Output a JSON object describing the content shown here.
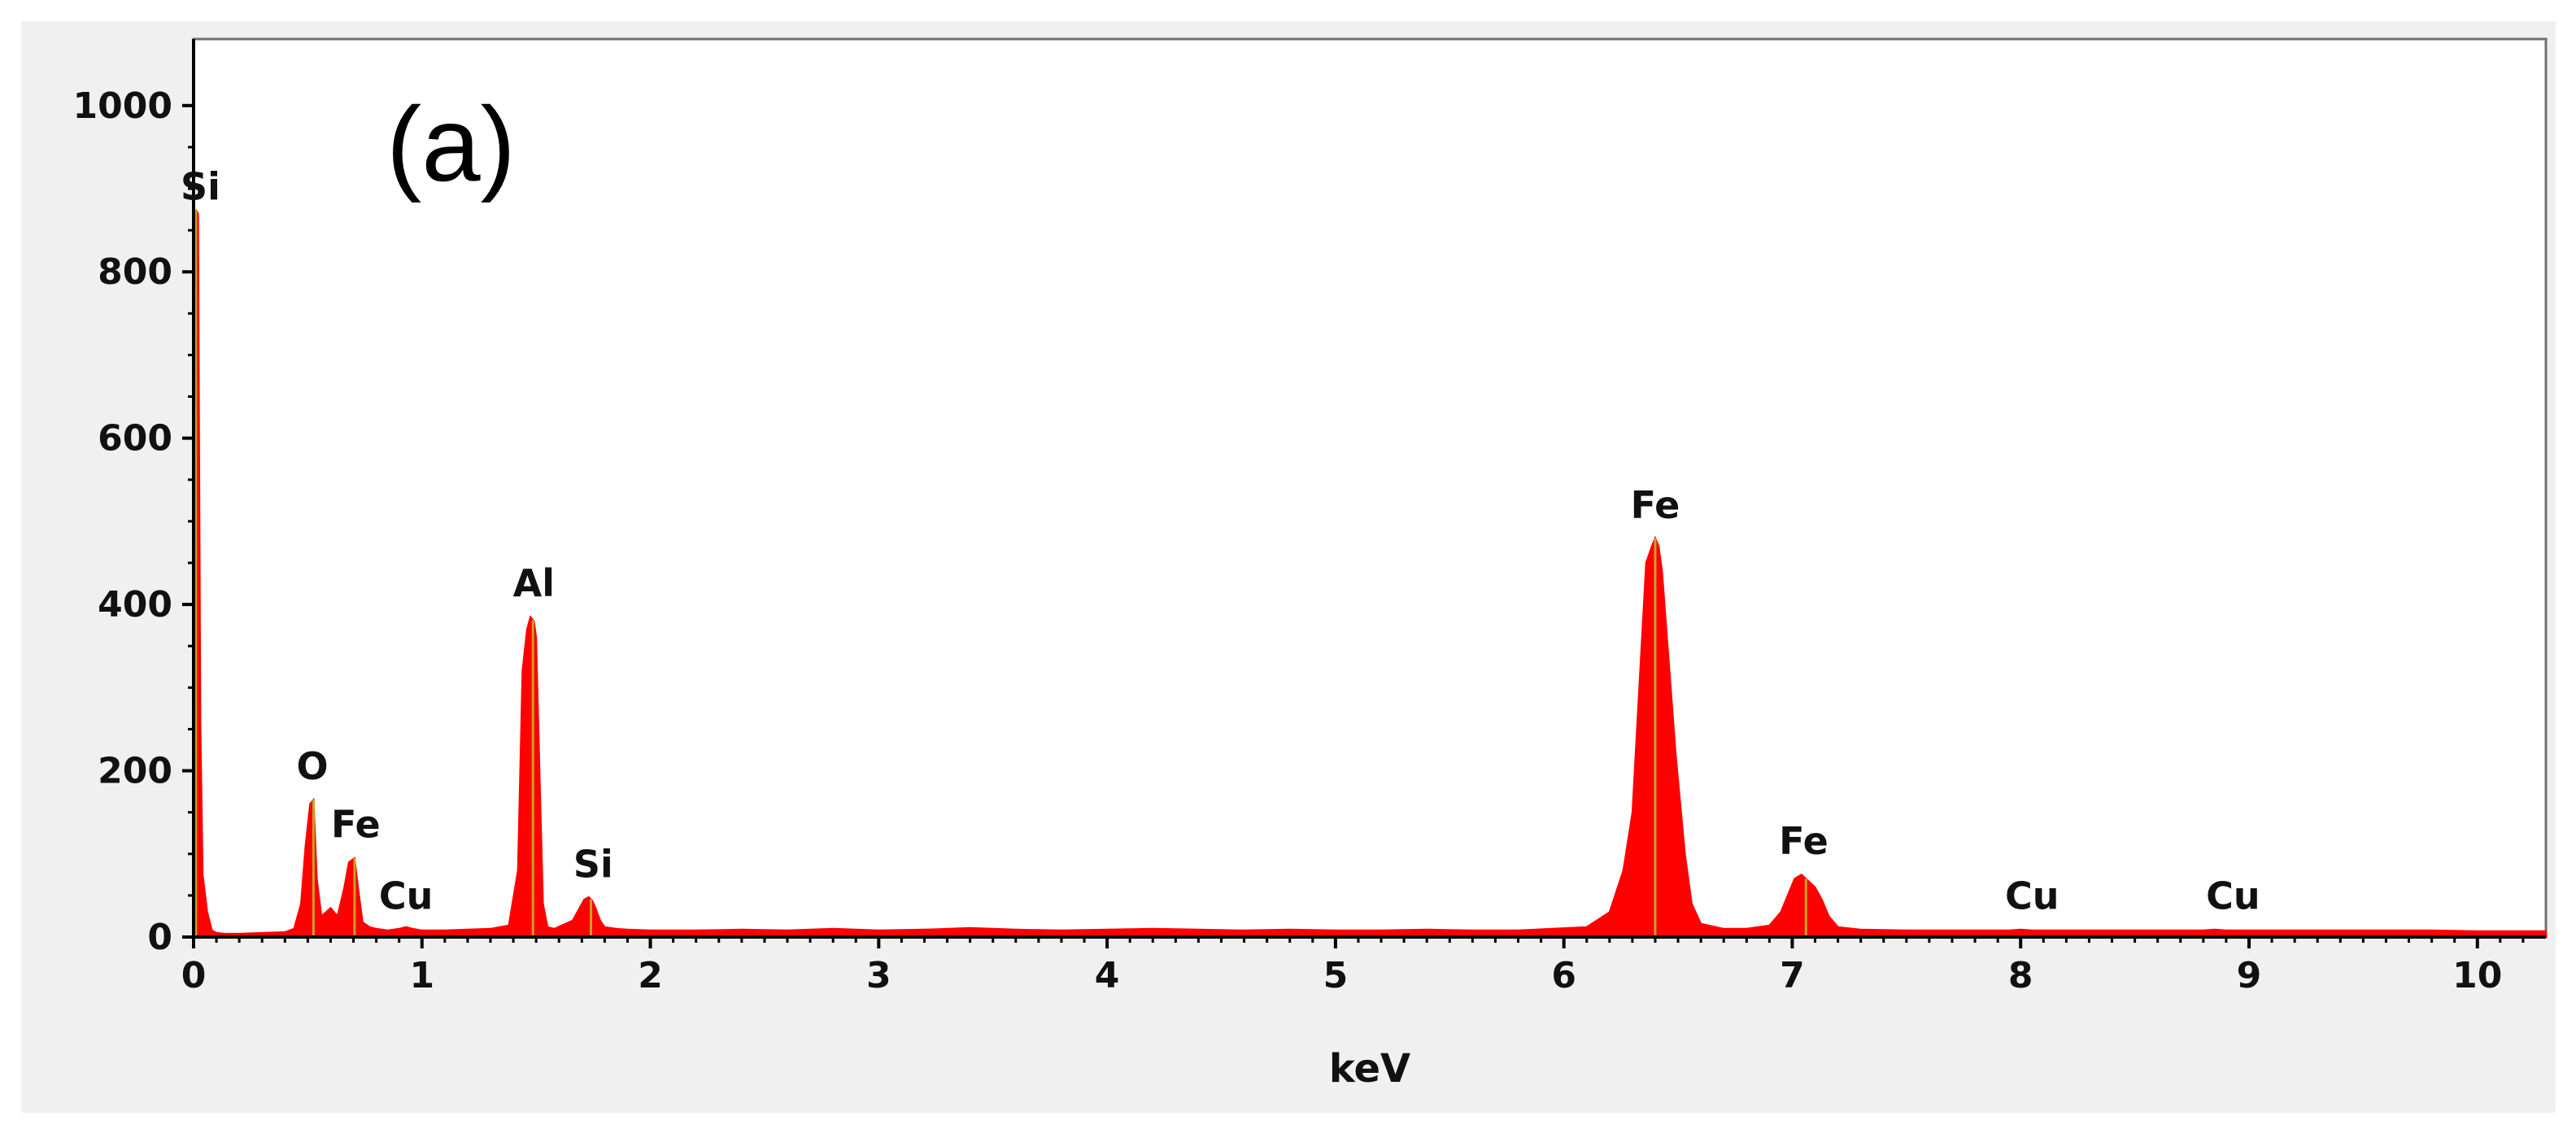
{
  "chart_data": {
    "type": "area",
    "panel_label": "(a)",
    "title": "",
    "xlabel": "keV",
    "ylabel": "",
    "xlim": [
      0,
      10.3
    ],
    "ylim": [
      0,
      1080
    ],
    "grid": false,
    "legend": "none",
    "x_ticks": [
      0,
      1,
      2,
      3,
      4,
      5,
      6,
      7,
      8,
      9,
      10
    ],
    "y_ticks": [
      0,
      200,
      400,
      600,
      800,
      1000
    ],
    "colors": {
      "fill": "#ff0000",
      "peak_line": "#c8a020",
      "axis": "#000000",
      "frame": "#707070",
      "outer_background": "#f0f0f0",
      "plot_background": "#ffffff"
    },
    "series": [
      {
        "x": [
          0.0,
          0.01,
          0.02,
          0.03,
          0.04,
          0.06,
          0.08,
          0.1,
          0.14,
          0.2,
          0.3,
          0.4,
          0.44,
          0.47,
          0.49,
          0.51,
          0.525,
          0.54,
          0.56,
          0.58,
          0.6,
          0.63,
          0.66,
          0.68,
          0.705,
          0.72,
          0.74,
          0.77,
          0.8,
          0.85,
          0.9,
          0.93,
          0.96,
          1.0,
          1.1,
          1.2,
          1.3,
          1.38,
          1.42,
          1.44,
          1.46,
          1.475,
          1.49,
          1.5,
          1.51,
          1.53,
          1.55,
          1.58,
          1.62,
          1.66,
          1.69,
          1.71,
          1.73,
          1.745,
          1.76,
          1.78,
          1.8,
          1.85,
          1.9,
          2.0,
          2.2,
          2.4,
          2.6,
          2.8,
          3.0,
          3.2,
          3.4,
          3.6,
          3.8,
          4.0,
          4.2,
          4.4,
          4.6,
          4.8,
          5.0,
          5.2,
          5.4,
          5.6,
          5.8,
          5.95,
          6.1,
          6.2,
          6.26,
          6.3,
          6.33,
          6.36,
          6.385,
          6.4,
          6.415,
          6.43,
          6.46,
          6.49,
          6.53,
          6.56,
          6.6,
          6.7,
          6.8,
          6.9,
          6.95,
          6.98,
          7.01,
          7.04,
          7.06,
          7.08,
          7.1,
          7.13,
          7.16,
          7.2,
          7.3,
          7.5,
          7.7,
          7.9,
          7.95,
          8.0,
          8.05,
          8.2,
          8.5,
          8.8,
          8.85,
          8.9,
          9.0,
          9.2,
          9.5,
          9.8,
          10.0,
          10.2,
          10.3
        ],
        "values": [
          0,
          875,
          870,
          260,
          75,
          30,
          8,
          5,
          4,
          4,
          5,
          6,
          10,
          40,
          110,
          160,
          165,
          70,
          25,
          30,
          35,
          25,
          60,
          90,
          95,
          60,
          18,
          12,
          10,
          8,
          10,
          12,
          10,
          8,
          8,
          9,
          10,
          14,
          80,
          320,
          370,
          385,
          380,
          360,
          250,
          40,
          12,
          10,
          15,
          20,
          35,
          45,
          48,
          44,
          35,
          20,
          12,
          10,
          9,
          8,
          8,
          9,
          8,
          10,
          8,
          9,
          11,
          9,
          8,
          9,
          10,
          9,
          8,
          9,
          8,
          8,
          9,
          8,
          8,
          10,
          12,
          30,
          80,
          150,
          300,
          450,
          470,
          480,
          470,
          440,
          330,
          220,
          100,
          40,
          16,
          10,
          10,
          14,
          30,
          50,
          70,
          75,
          70,
          65,
          60,
          45,
          25,
          12,
          9,
          8,
          8,
          8,
          8,
          9,
          8,
          8,
          8,
          8,
          9,
          8,
          8,
          8,
          8,
          8,
          7,
          7,
          7
        ]
      }
    ],
    "peak_lines": [
      0.01,
      0.525,
      0.705,
      1.486,
      1.74,
      6.4,
      7.06
    ],
    "annotations": [
      {
        "text": "Si",
        "x": 0.03,
        "y": 875
      },
      {
        "text": "O",
        "x": 0.52,
        "y": 178
      },
      {
        "text": "Fe",
        "x": 0.71,
        "y": 108
      },
      {
        "text": "Cu",
        "x": 0.93,
        "y": 22
      },
      {
        "text": "Al",
        "x": 1.49,
        "y": 398
      },
      {
        "text": "Si",
        "x": 1.75,
        "y": 60
      },
      {
        "text": "Fe",
        "x": 6.4,
        "y": 492
      },
      {
        "text": "Fe",
        "x": 7.05,
        "y": 88
      },
      {
        "text": "Cu",
        "x": 8.05,
        "y": 22
      },
      {
        "text": "Cu",
        "x": 8.93,
        "y": 22
      }
    ]
  }
}
